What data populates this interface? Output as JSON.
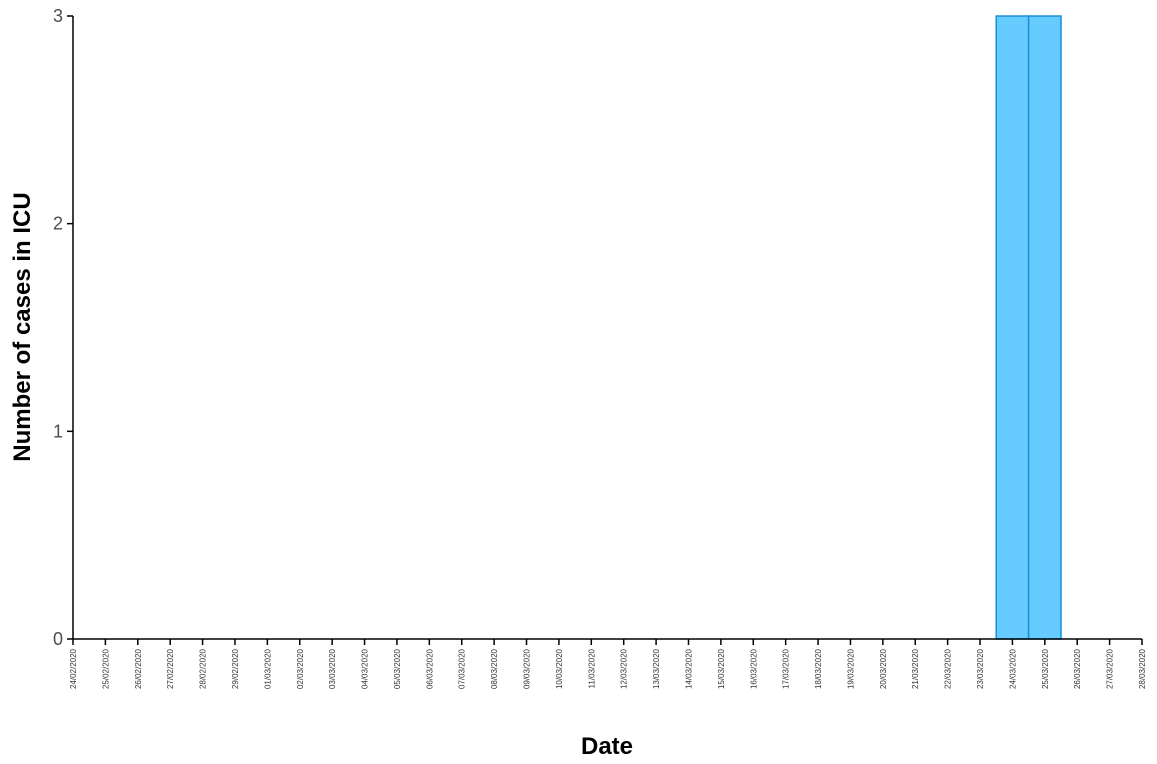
{
  "chart_data": {
    "type": "bar",
    "title": "",
    "xlabel": "Date",
    "ylabel": "Number of cases in ICU",
    "ylim": [
      0,
      3
    ],
    "yticks": [
      0,
      1,
      2,
      3
    ],
    "categories": [
      "24/02/2020",
      "25/02/2020",
      "26/02/2020",
      "27/02/2020",
      "28/02/2020",
      "29/02/2020",
      "01/03/2020",
      "02/03/2020",
      "03/03/2020",
      "04/03/2020",
      "05/03/2020",
      "06/03/2020",
      "07/03/2020",
      "08/03/2020",
      "09/03/2020",
      "10/03/2020",
      "11/03/2020",
      "12/03/2020",
      "13/03/2020",
      "14/03/2020",
      "15/03/2020",
      "16/03/2020",
      "17/03/2020",
      "18/03/2020",
      "19/03/2020",
      "20/03/2020",
      "21/03/2020",
      "22/03/2020",
      "23/03/2020",
      "24/03/2020",
      "25/03/2020",
      "26/03/2020",
      "27/03/2020",
      "28/03/2020"
    ],
    "bars": [
      {
        "date": "24/03/2020",
        "value": 3
      },
      {
        "date": "25/03/2020",
        "value": 3
      }
    ],
    "grid": false,
    "colors": {
      "bar_fill": "#66ccff",
      "bar_stroke": "#1a8fd6",
      "axis": "#000000"
    }
  }
}
